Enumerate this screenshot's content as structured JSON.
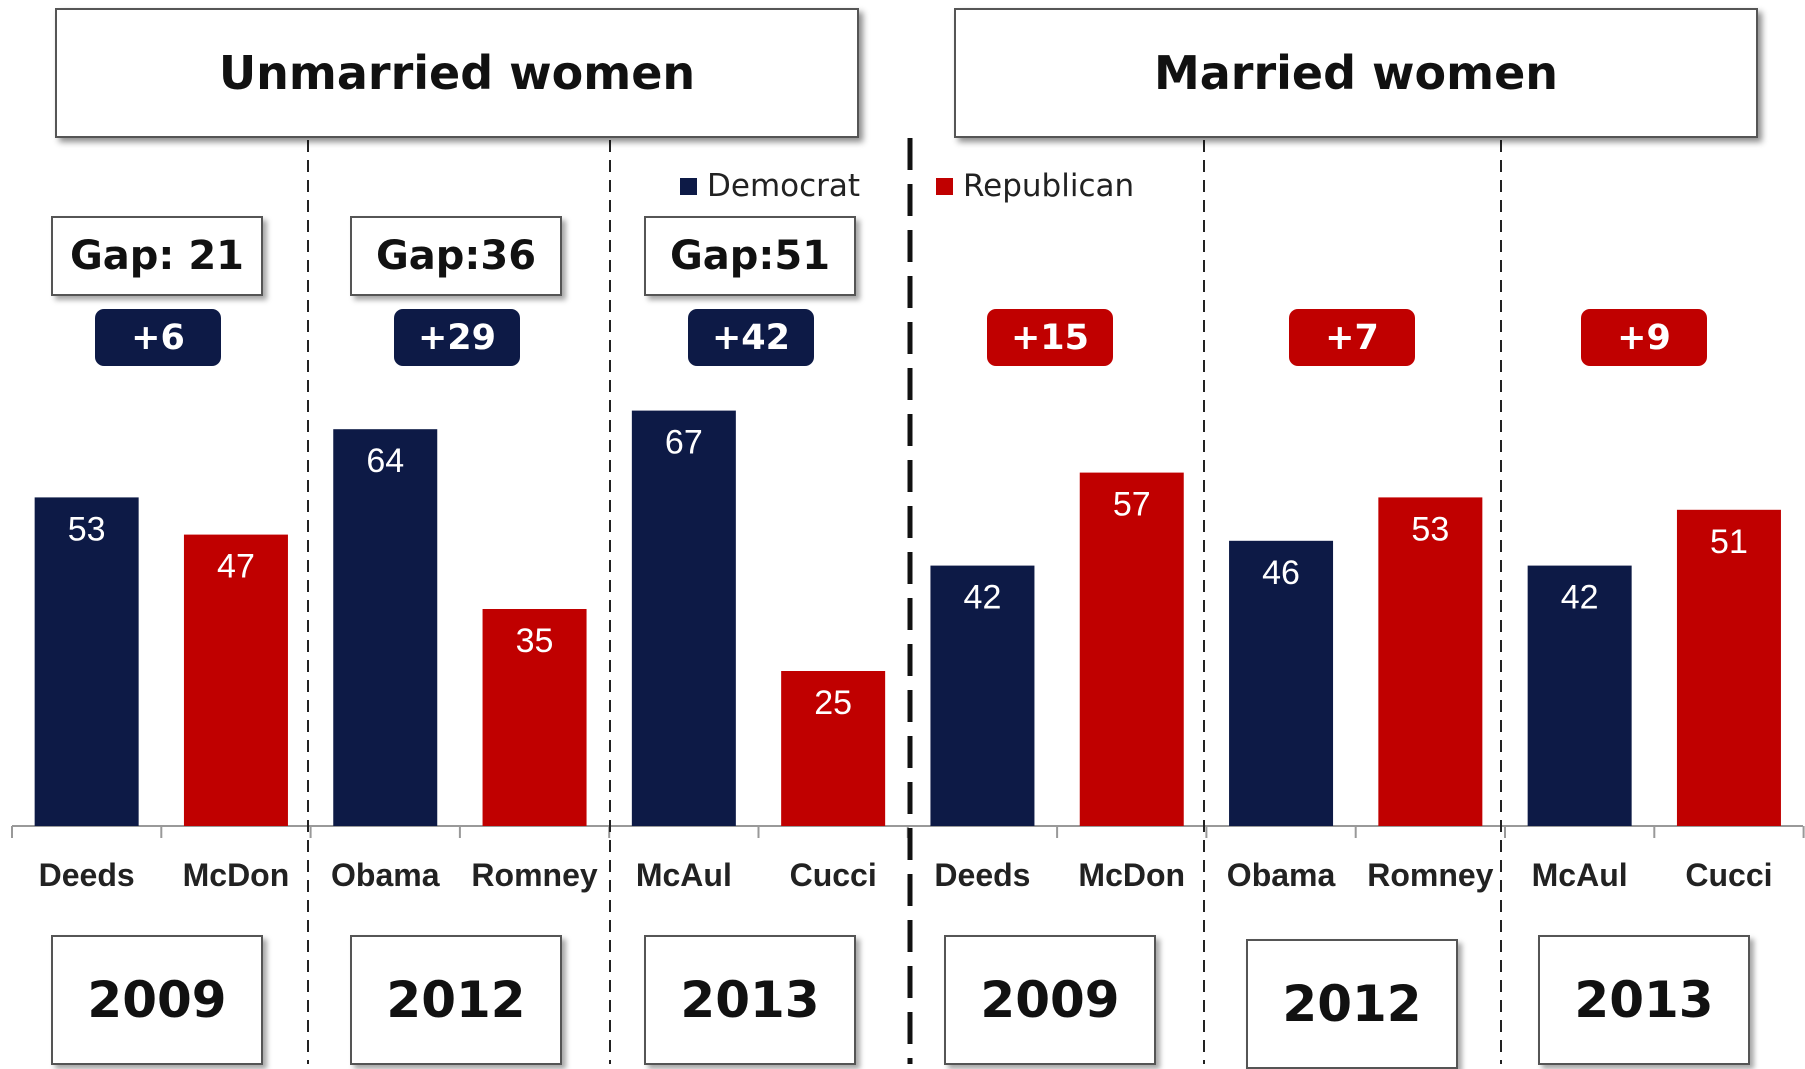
{
  "chart_data": {
    "type": "bar",
    "ylim": [
      0,
      100
    ],
    "legend": {
      "placement": "top-center",
      "entries": [
        {
          "name": "Democrat",
          "color": "#0d1a46"
        },
        {
          "name": "Republican",
          "color": "#c00000"
        }
      ]
    },
    "colors": {
      "Democrat": "#0d1a46",
      "Republican": "#c00000"
    },
    "panels": [
      {
        "title": "Unmarried women",
        "groups": [
          {
            "year": "2009",
            "gap": "Gap: 21",
            "margin": "+6",
            "margin_party": "Democrat",
            "bars": [
              {
                "label": "Deeds",
                "party": "Democrat",
                "value": 53
              },
              {
                "label": "McDon",
                "party": "Republican",
                "value": 47
              }
            ]
          },
          {
            "year": "2012",
            "gap": "Gap:36",
            "margin": "+29",
            "margin_party": "Democrat",
            "bars": [
              {
                "label": "Obama",
                "party": "Democrat",
                "value": 64
              },
              {
                "label": "Romney",
                "party": "Republican",
                "value": 35
              }
            ]
          },
          {
            "year": "2013",
            "gap": "Gap:51",
            "margin": "+42",
            "margin_party": "Democrat",
            "bars": [
              {
                "label": "McAul",
                "party": "Democrat",
                "value": 67
              },
              {
                "label": "Cucci",
                "party": "Republican",
                "value": 25
              }
            ]
          }
        ]
      },
      {
        "title": "Married women",
        "groups": [
          {
            "year": "2009",
            "gap": "",
            "margin": "+15",
            "margin_party": "Republican",
            "bars": [
              {
                "label": "Deeds",
                "party": "Democrat",
                "value": 42
              },
              {
                "label": "McDon",
                "party": "Republican",
                "value": 57
              }
            ]
          },
          {
            "year": "2012",
            "gap": "",
            "margin": "+7",
            "margin_party": "Republican",
            "bars": [
              {
                "label": "Obama",
                "party": "Democrat",
                "value": 46
              },
              {
                "label": "Romney",
                "party": "Republican",
                "value": 53
              }
            ]
          },
          {
            "year": "2013",
            "gap": "",
            "margin": "+9",
            "margin_party": "Republican",
            "bars": [
              {
                "label": "McAul",
                "party": "Democrat",
                "value": 42
              },
              {
                "label": "Cucci",
                "party": "Republican",
                "value": 51
              }
            ]
          }
        ]
      }
    ]
  }
}
